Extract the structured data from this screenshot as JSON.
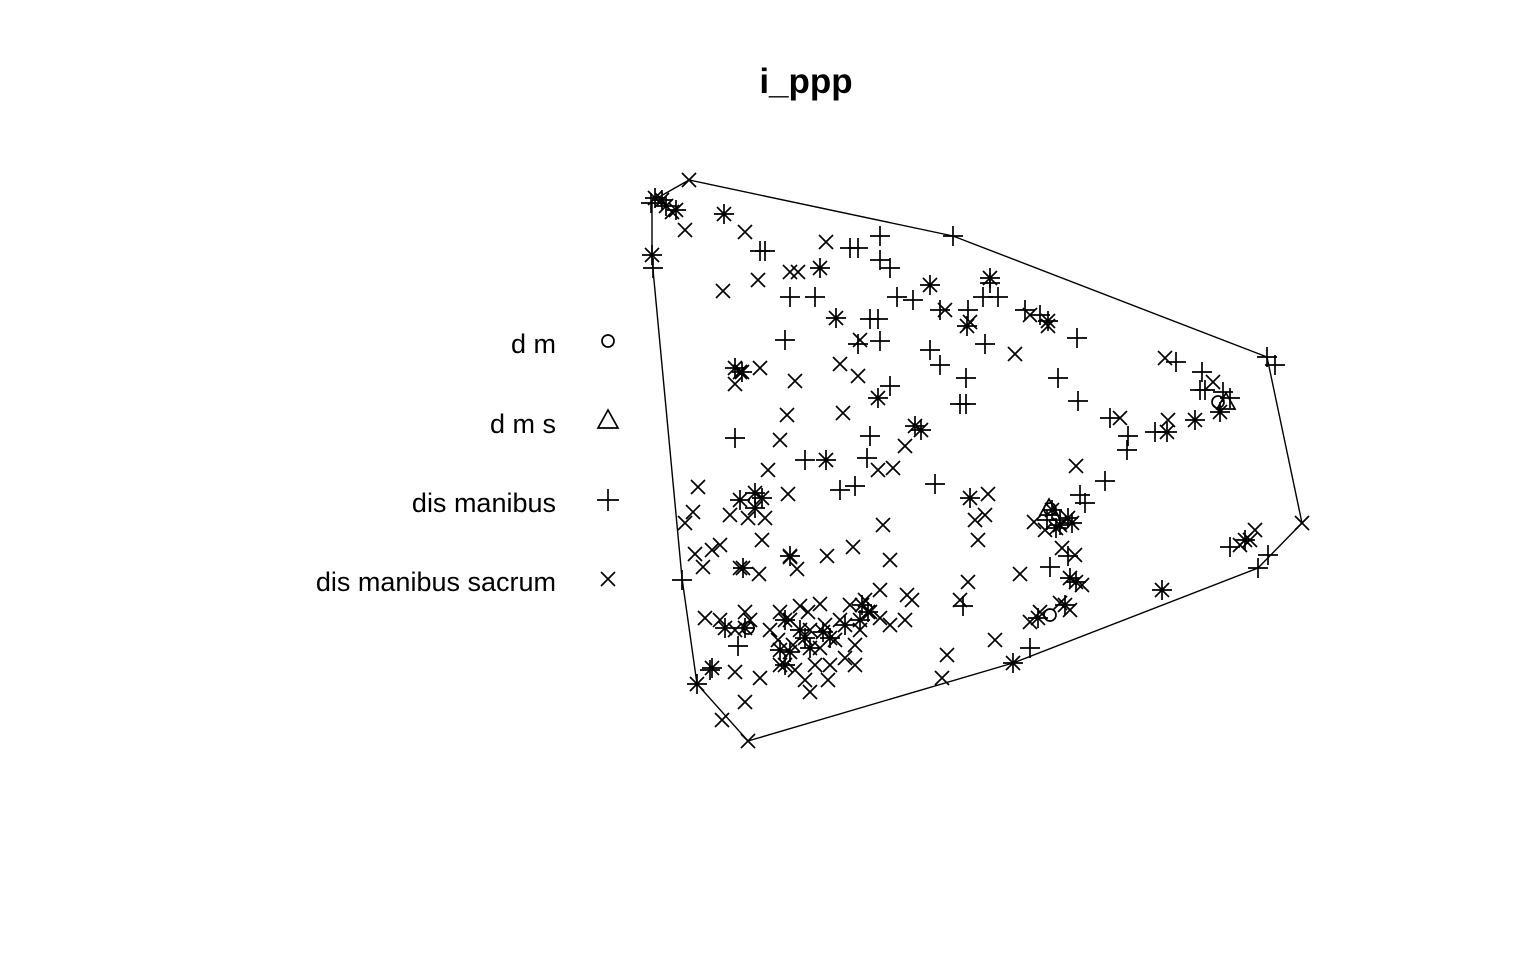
{
  "chart_data": {
    "type": "scatter",
    "title": "i_ppp",
    "xlabel": "",
    "ylabel": "",
    "grid": false,
    "legend_placement": "left",
    "window_type": "convex polygon",
    "window_polygon": [
      [
        652,
        201
      ],
      [
        689,
        180
      ],
      [
        953,
        236
      ],
      [
        1267,
        357
      ],
      [
        1302,
        523
      ],
      [
        1258,
        568
      ],
      [
        1013,
        663
      ],
      [
        748,
        741
      ],
      [
        697,
        684
      ],
      [
        682,
        578
      ],
      [
        652,
        259
      ]
    ],
    "series": [
      {
        "name": "d m",
        "marker": "circle",
        "points": [
          [
            1050,
            615
          ],
          [
            1218,
            402
          ],
          [
            1050,
            509
          ],
          [
            748,
            628
          ]
        ]
      },
      {
        "name": "d m s",
        "marker": "triangle",
        "points": [
          [
            1049,
            508
          ],
          [
            1226,
            402
          ]
        ]
      },
      {
        "name": "dis manibus",
        "marker": "plus",
        "points": [
          [
            651,
            203
          ],
          [
            653,
            268
          ],
          [
            682,
            580
          ],
          [
            760,
            251
          ],
          [
            765,
            251
          ],
          [
            850,
            248
          ],
          [
            858,
            248
          ],
          [
            880,
            236
          ],
          [
            880,
            260
          ],
          [
            890,
            268
          ],
          [
            953,
            236
          ],
          [
            790,
            297
          ],
          [
            815,
            297
          ],
          [
            870,
            319
          ],
          [
            878,
            319
          ],
          [
            897,
            297
          ],
          [
            913,
            300
          ],
          [
            940,
            310
          ],
          [
            968,
            310
          ],
          [
            983,
            297
          ],
          [
            990,
            283
          ],
          [
            998,
            297
          ],
          [
            1025,
            310
          ],
          [
            1040,
            315
          ],
          [
            785,
            340
          ],
          [
            858,
            344
          ],
          [
            880,
            341
          ],
          [
            930,
            350
          ],
          [
            940,
            365
          ],
          [
            985,
            344
          ],
          [
            1077,
            338
          ],
          [
            1058,
            378
          ],
          [
            966,
            378
          ],
          [
            960,
            404
          ],
          [
            966,
            404
          ],
          [
            890,
            386
          ],
          [
            1078,
            401
          ],
          [
            1110,
            418
          ],
          [
            1128,
            436
          ],
          [
            1127,
            450
          ],
          [
            1155,
            432
          ],
          [
            1176,
            362
          ],
          [
            1202,
            372
          ],
          [
            1205,
            390
          ],
          [
            1223,
            392
          ],
          [
            1230,
            398
          ],
          [
            1200,
            390
          ],
          [
            1195,
            420
          ],
          [
            1267,
            357
          ],
          [
            1275,
            365
          ],
          [
            735,
            438
          ],
          [
            870,
            436
          ],
          [
            867,
            458
          ],
          [
            805,
            460
          ],
          [
            840,
            490
          ],
          [
            855,
            486
          ],
          [
            935,
            484
          ],
          [
            1105,
            481
          ],
          [
            1080,
            495
          ],
          [
            1085,
            503
          ],
          [
            1047,
            520
          ],
          [
            1060,
            520
          ],
          [
            1068,
            556
          ],
          [
            1050,
            567
          ],
          [
            1230,
            547
          ],
          [
            1258,
            568
          ],
          [
            1268,
            555
          ],
          [
            963,
            606
          ],
          [
            1030,
            648
          ],
          [
            738,
            646
          ],
          [
            710,
            670
          ]
        ]
      },
      {
        "name": "dis manibus sacrum",
        "marker": "cross",
        "points": [
          [
            689,
            180
          ],
          [
            672,
            212
          ],
          [
            685,
            230
          ],
          [
            745,
            232
          ],
          [
            758,
            280
          ],
          [
            723,
            291
          ],
          [
            826,
            242
          ],
          [
            790,
            272
          ],
          [
            798,
            272
          ],
          [
            860,
            340
          ],
          [
            840,
            364
          ],
          [
            858,
            376
          ],
          [
            795,
            381
          ],
          [
            787,
            415
          ],
          [
            843,
            413
          ],
          [
            780,
            440
          ],
          [
            1015,
            354
          ],
          [
            970,
            322
          ],
          [
            1048,
            326
          ],
          [
            1030,
            315
          ],
          [
            1165,
            358
          ],
          [
            1168,
            420
          ],
          [
            945,
            310
          ],
          [
            735,
            384
          ],
          [
            740,
            372
          ],
          [
            760,
            368
          ],
          [
            905,
            446
          ],
          [
            878,
            470
          ],
          [
            893,
            468
          ],
          [
            768,
            470
          ],
          [
            698,
            487
          ],
          [
            788,
            494
          ],
          [
            730,
            515
          ],
          [
            693,
            512
          ],
          [
            685,
            523
          ],
          [
            748,
            518
          ],
          [
            765,
            518
          ],
          [
            762,
            540
          ],
          [
            695,
            554
          ],
          [
            703,
            567
          ],
          [
            712,
            550
          ],
          [
            720,
            545
          ],
          [
            740,
            568
          ],
          [
            759,
            574
          ],
          [
            790,
            557
          ],
          [
            797,
            569
          ],
          [
            827,
            556
          ],
          [
            853,
            547
          ],
          [
            883,
            525
          ],
          [
            890,
            560
          ],
          [
            975,
            520
          ],
          [
            985,
            515
          ],
          [
            988,
            494
          ],
          [
            978,
            540
          ],
          [
            1076,
            466
          ],
          [
            1034,
            522
          ],
          [
            1045,
            530
          ],
          [
            1062,
            548
          ],
          [
            1075,
            555
          ],
          [
            1020,
            574
          ],
          [
            1082,
            585
          ],
          [
            1060,
            603
          ],
          [
            1070,
            610
          ],
          [
            968,
            582
          ],
          [
            960,
            600
          ],
          [
            907,
            595
          ],
          [
            905,
            620
          ],
          [
            912,
            600
          ],
          [
            880,
            590
          ],
          [
            865,
            600
          ],
          [
            870,
            612
          ],
          [
            850,
            605
          ],
          [
            840,
            620
          ],
          [
            820,
            604
          ],
          [
            825,
            625
          ],
          [
            800,
            606
          ],
          [
            808,
            612
          ],
          [
            780,
            612
          ],
          [
            790,
            620
          ],
          [
            770,
            630
          ],
          [
            778,
            640
          ],
          [
            793,
            645
          ],
          [
            810,
            630
          ],
          [
            820,
            648
          ],
          [
            835,
            640
          ],
          [
            855,
            645
          ],
          [
            860,
            630
          ],
          [
            880,
            618
          ],
          [
            890,
            625
          ],
          [
            845,
            658
          ],
          [
            855,
            665
          ],
          [
            830,
            665
          ],
          [
            815,
            665
          ],
          [
            828,
            680
          ],
          [
            795,
            670
          ],
          [
            805,
            680
          ],
          [
            810,
            692
          ],
          [
            780,
            665
          ],
          [
            760,
            678
          ],
          [
            745,
            612
          ],
          [
            750,
            620
          ],
          [
            735,
            630
          ],
          [
            720,
            620
          ],
          [
            705,
            618
          ],
          [
            735,
            672
          ],
          [
            745,
            702
          ],
          [
            722,
            720
          ],
          [
            748,
            741
          ],
          [
            947,
            655
          ],
          [
            942,
            678
          ],
          [
            995,
            640
          ],
          [
            1040,
            612
          ],
          [
            1030,
            622
          ],
          [
            1120,
            418
          ],
          [
            1195,
            420
          ],
          [
            1213,
            382
          ],
          [
            1302,
            523
          ],
          [
            1255,
            530
          ],
          [
            1250,
            540
          ],
          [
            1240,
            545
          ]
        ]
      },
      {
        "name": "asterisk",
        "marker": "asterisk",
        "points": [
          [
            655,
            198
          ],
          [
            662,
            200
          ],
          [
            666,
            206
          ],
          [
            676,
            210
          ],
          [
            652,
            255
          ],
          [
            724,
            214
          ],
          [
            820,
            268
          ],
          [
            836,
            318
          ],
          [
            967,
            326
          ],
          [
            930,
            285
          ],
          [
            990,
            278
          ],
          [
            1048,
            321
          ],
          [
            735,
            368
          ],
          [
            742,
            372
          ],
          [
            878,
            398
          ],
          [
            915,
            426
          ],
          [
            921,
            430
          ],
          [
            826,
            460
          ],
          [
            740,
            500
          ],
          [
            755,
            493
          ],
          [
            762,
            498
          ],
          [
            755,
            508
          ],
          [
            743,
            568
          ],
          [
            790,
            556
          ],
          [
            970,
            498
          ],
          [
            1052,
            510
          ],
          [
            1060,
            525
          ],
          [
            1068,
            518
          ],
          [
            1072,
            523
          ],
          [
            1056,
            528
          ],
          [
            1070,
            578
          ],
          [
            1076,
            582
          ],
          [
            1038,
            618
          ],
          [
            1065,
            605
          ],
          [
            1162,
            590
          ],
          [
            1245,
            540
          ],
          [
            1220,
            412
          ],
          [
            1167,
            432
          ],
          [
            1013,
            663
          ],
          [
            697,
            684
          ],
          [
            712,
            668
          ],
          [
            725,
            628
          ],
          [
            745,
            628
          ],
          [
            785,
            620
          ],
          [
            800,
            630
          ],
          [
            805,
            638
          ],
          [
            810,
            648
          ],
          [
            790,
            652
          ],
          [
            785,
            665
          ],
          [
            780,
            650
          ],
          [
            823,
            632
          ],
          [
            830,
            638
          ],
          [
            845,
            625
          ],
          [
            862,
            605
          ],
          [
            868,
            612
          ],
          [
            860,
            620
          ]
        ]
      }
    ]
  }
}
